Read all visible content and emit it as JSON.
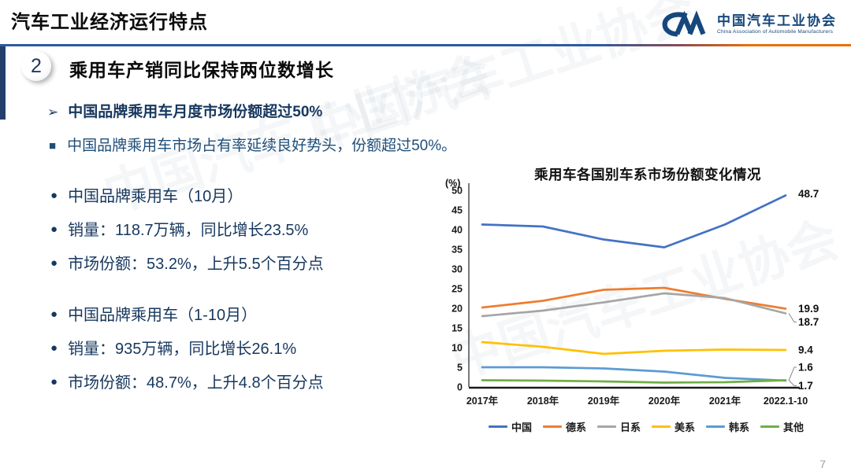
{
  "header": {
    "title": "汽车工业经济运行特点",
    "logo": {
      "org_cn": "中国汽车工业协会",
      "org_en": "China Association of Automobile Manufacturers"
    }
  },
  "section": {
    "number": "2",
    "heading": "乘用车产销同比保持两位数增长",
    "arrow_glyph": "➢",
    "arrow_point": "中国品牌乘用车月度市场份额超过50%",
    "square_glyph": "■",
    "square_point": "中国品牌乘用车市场占有率延续良好势头，份额超过50%。"
  },
  "stats": {
    "bullet_glyph": "●",
    "groups": [
      {
        "items": [
          "中国品牌乘用车（10月）",
          "销量：118.7万辆，同比增长23.5%",
          "市场份额：53.2%，上升5.5个百分点"
        ]
      },
      {
        "items": [
          "中国品牌乘用车（1-10月）",
          "销量：935万辆，同比增长26.1%",
          "市场份额：48.7%，上升4.8个百分点"
        ]
      }
    ]
  },
  "chart_data": {
    "type": "line",
    "title": "乘用车各国别车系市场份额变化情况",
    "unit_label": "(%)",
    "categories": [
      "2017年",
      "2018年",
      "2019年",
      "2020年",
      "2021年",
      "2022.1-10"
    ],
    "series": [
      {
        "name": "中国",
        "color": "#4472C4",
        "values": [
          41.3,
          40.8,
          37.5,
          35.5,
          41.3,
          48.7
        ],
        "end_label": "48.7",
        "label_offset": -2
      },
      {
        "name": "德系",
        "color": "#ED7D31",
        "values": [
          20.2,
          21.9,
          24.7,
          25.2,
          22.4,
          19.9
        ],
        "end_label": "19.9",
        "label_offset": 0
      },
      {
        "name": "日系",
        "color": "#A6A6A6",
        "values": [
          18.0,
          19.4,
          21.5,
          23.8,
          22.6,
          18.7
        ],
        "end_label": "18.7",
        "label_offset": 11
      },
      {
        "name": "美系",
        "color": "#FFC000",
        "values": [
          11.4,
          10.2,
          8.4,
          9.2,
          9.5,
          9.4
        ],
        "end_label": "9.4",
        "label_offset": 0
      },
      {
        "name": "韩系",
        "color": "#5B9BD5",
        "values": [
          5.0,
          5.0,
          4.7,
          3.9,
          2.3,
          1.6
        ],
        "end_label": "1.6",
        "label_offset": -17
      },
      {
        "name": "其他",
        "color": "#70AD47",
        "values": [
          1.7,
          1.6,
          1.4,
          1.1,
          1.2,
          1.7
        ],
        "end_label": "1.7",
        "label_offset": 7
      }
    ],
    "ylim": [
      0,
      50
    ],
    "ytick_step": 5,
    "grid": false,
    "legend_position": "bottom"
  },
  "footer": {
    "page_number": "7"
  },
  "watermark": {
    "text": "中国汽车工业协会"
  }
}
